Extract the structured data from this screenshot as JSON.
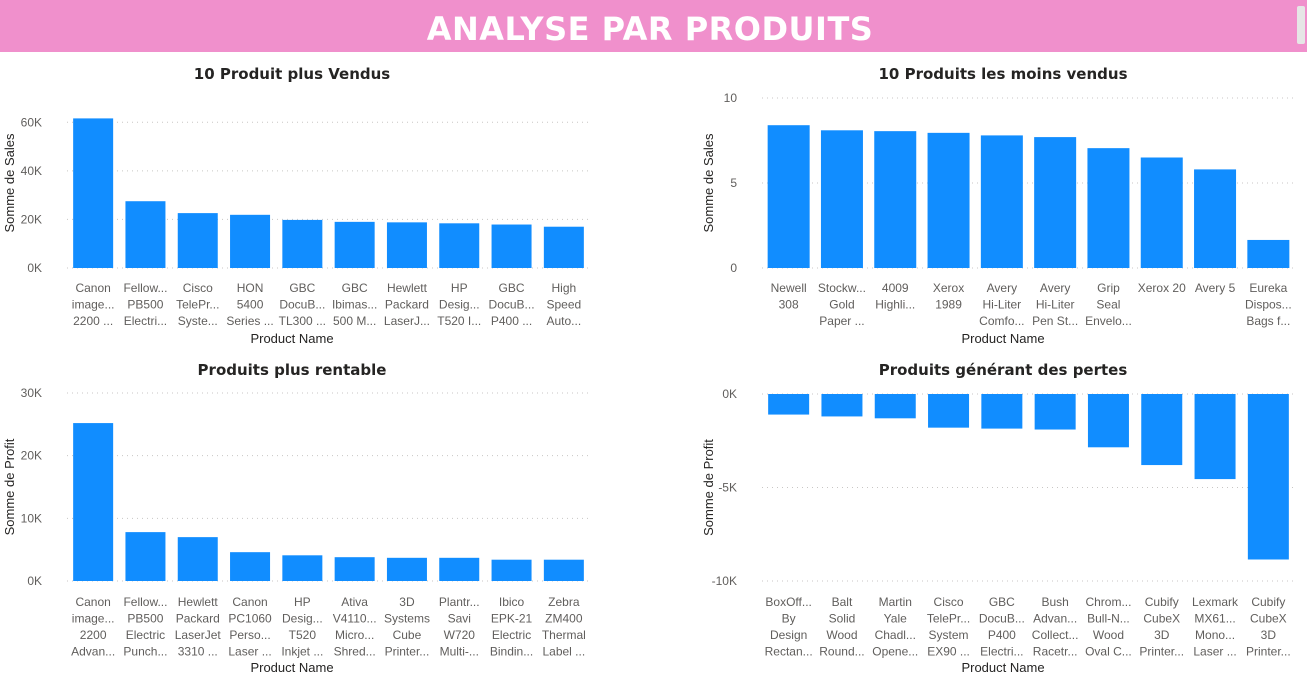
{
  "header": {
    "title": "ANALYSE PAR PRODUITS"
  },
  "chart_data": [
    {
      "id": "top-sales",
      "type": "bar",
      "title": "10 Produit plus Vendus",
      "xlabel": "Product Name",
      "ylabel": "Somme de Sales",
      "ylim": [
        0,
        70000
      ],
      "ticks": [
        {
          "v": 0,
          "label": "0K"
        },
        {
          "v": 20000,
          "label": "20K"
        },
        {
          "v": 40000,
          "label": "40K"
        },
        {
          "v": 60000,
          "label": "60K"
        }
      ],
      "categories": [
        [
          "Canon",
          "image...",
          "2200 ..."
        ],
        [
          "Fellow...",
          "PB500",
          "Electri..."
        ],
        [
          "Cisco",
          "TelePr...",
          "Syste..."
        ],
        [
          "HON",
          "5400",
          "Series ..."
        ],
        [
          "GBC",
          "DocuB...",
          "TL300 ..."
        ],
        [
          "GBC",
          "Ibimas...",
          "500 M..."
        ],
        [
          "Hewlett",
          "Packard",
          "LaserJ..."
        ],
        [
          "HP",
          "Desig...",
          "T520 I..."
        ],
        [
          "GBC",
          "DocuB...",
          "P400 ..."
        ],
        [
          "High",
          "Speed",
          "Auto..."
        ]
      ],
      "values": [
        61600,
        27500,
        22600,
        21900,
        19800,
        19000,
        18800,
        18400,
        17900,
        17000
      ],
      "color": "#118dff"
    },
    {
      "id": "bottom-sales",
      "type": "bar",
      "title": "10 Produits les moins vendus",
      "xlabel": "Product Name",
      "ylabel": "Somme de Sales",
      "ylim": [
        0,
        10
      ],
      "ticks": [
        {
          "v": 0,
          "label": "0"
        },
        {
          "v": 5,
          "label": "5"
        },
        {
          "v": 10,
          "label": "10"
        }
      ],
      "categories": [
        [
          "Newell",
          "308"
        ],
        [
          "Stockw...",
          "Gold",
          "Paper ..."
        ],
        [
          "4009",
          "Highli..."
        ],
        [
          "Xerox",
          "1989"
        ],
        [
          "Avery",
          "Hi-Liter",
          "Comfo..."
        ],
        [
          "Avery",
          "Hi-Liter",
          "Pen St..."
        ],
        [
          "Grip",
          "Seal",
          "Envelo..."
        ],
        [
          "Xerox 20"
        ],
        [
          "Avery 5"
        ],
        [
          "Eureka",
          "Dispos...",
          "Bags f..."
        ]
      ],
      "values": [
        8.4,
        8.1,
        8.05,
        7.95,
        7.8,
        7.7,
        7.05,
        6.5,
        5.8,
        1.65
      ],
      "color": "#118dff"
    },
    {
      "id": "top-profit",
      "type": "bar",
      "title": "Produits plus rentable",
      "xlabel": "Product Name",
      "ylabel": "Somme de Profit",
      "ylim": [
        0,
        30000
      ],
      "ticks": [
        {
          "v": 0,
          "label": "0K"
        },
        {
          "v": 10000,
          "label": "10K"
        },
        {
          "v": 20000,
          "label": "20K"
        },
        {
          "v": 30000,
          "label": "30K"
        }
      ],
      "categories": [
        [
          "Canon",
          "image...",
          "2200",
          "Advan..."
        ],
        [
          "Fellow...",
          "PB500",
          "Electric",
          "Punch..."
        ],
        [
          "Hewlett",
          "Packard",
          "LaserJet",
          "3310 ..."
        ],
        [
          "Canon",
          "PC1060",
          "Perso...",
          "Laser ..."
        ],
        [
          "HP",
          "Desig...",
          "T520",
          "Inkjet ..."
        ],
        [
          "Ativa",
          "V4110...",
          "Micro...",
          "Shred..."
        ],
        [
          "3D",
          "Systems",
          "Cube",
          "Printer..."
        ],
        [
          "Plantr...",
          "Savi",
          "W720",
          "Multi-..."
        ],
        [
          "Ibico",
          "EPK-21",
          "Electric",
          "Bindin..."
        ],
        [
          "Zebra",
          "ZM400",
          "Thermal",
          "Label ..."
        ]
      ],
      "values": [
        25200,
        7800,
        7000,
        4600,
        4100,
        3800,
        3700,
        3700,
        3400,
        3400
      ],
      "color": "#118dff"
    },
    {
      "id": "loss-products",
      "type": "bar",
      "title": "Produits générant des pertes",
      "xlabel": "Product Name",
      "ylabel": "Somme de Profit",
      "ylim": [
        -10000,
        0
      ],
      "ticks": [
        {
          "v": 0,
          "label": "0K"
        },
        {
          "v": -5000,
          "label": "-5K"
        },
        {
          "v": -10000,
          "label": "-10K"
        }
      ],
      "categories": [
        [
          "BoxOff...",
          "By",
          "Design",
          "Rectan..."
        ],
        [
          "Balt",
          "Solid",
          "Wood",
          "Round..."
        ],
        [
          "Martin",
          "Yale",
          "Chadl...",
          "Opene..."
        ],
        [
          "Cisco",
          "TelePr...",
          "System",
          "EX90 ..."
        ],
        [
          "GBC",
          "DocuB...",
          "P400",
          "Electri..."
        ],
        [
          "Bush",
          "Advan...",
          "Collect...",
          "Racetr..."
        ],
        [
          "Chrom...",
          "Bull-N...",
          "Wood",
          "Oval C..."
        ],
        [
          "Cubify",
          "CubeX",
          "3D",
          "Printer..."
        ],
        [
          "Lexmark",
          "MX61...",
          "Mono...",
          "Laser ..."
        ],
        [
          "Cubify",
          "CubeX",
          "3D",
          "Printer..."
        ]
      ],
      "values": [
        -1100,
        -1200,
        -1300,
        -1800,
        -1850,
        -1900,
        -2850,
        -3800,
        -4550,
        -8850
      ],
      "color": "#118dff"
    }
  ]
}
